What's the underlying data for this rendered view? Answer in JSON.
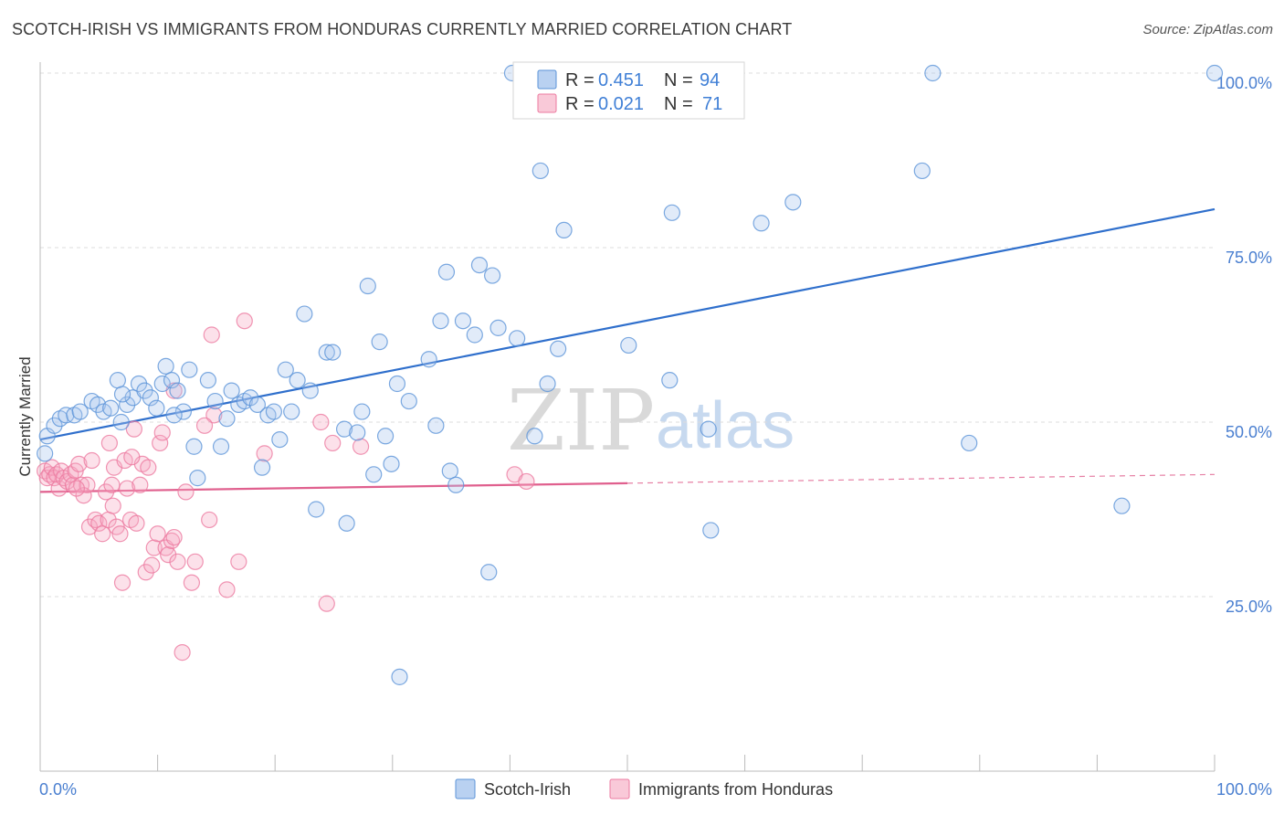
{
  "header": {
    "title": "SCOTCH-IRISH VS IMMIGRANTS FROM HONDURAS CURRENTLY MARRIED CORRELATION CHART",
    "source": "Source: ZipAtlas.com"
  },
  "legend": {
    "blue": {
      "r_label": "R =",
      "r_value": "0.451",
      "n_label": "N =",
      "n_value": "94"
    },
    "pink": {
      "r_label": "R =",
      "r_value": "0.021",
      "n_label": "N =",
      "n_value": "71"
    }
  },
  "watermark": {
    "zip": "ZIP",
    "atlas": "atlas"
  },
  "colors": {
    "blue": "#5b93d8",
    "blue_line": "#2f6fcc",
    "pink": "#ec7aa0",
    "pink_line": "#e0608e",
    "grid": "#dcdcdc"
  },
  "chart_data": {
    "type": "scatter",
    "title": "SCOTCH-IRISH VS IMMIGRANTS FROM HONDURAS CURRENTLY MARRIED CORRELATION CHART",
    "xlabel": "",
    "ylabel": "Currently Married",
    "xlim": [
      0,
      100
    ],
    "ylim": [
      0,
      102
    ],
    "x_tick_labels": [
      "0.0%",
      "100.0%"
    ],
    "y_ticks": [
      25,
      50,
      75,
      100
    ],
    "y_tick_labels": [
      "25.0%",
      "50.0%",
      "75.0%",
      "100.0%"
    ],
    "legend_position": "top-center",
    "series": [
      {
        "name": "Scotch-Irish",
        "color": "#5b93d8",
        "trend": {
          "x": [
            0,
            100
          ],
          "y": [
            47.5,
            80.5
          ],
          "dashed_from": null
        },
        "points": [
          [
            0.4,
            45.5
          ],
          [
            0.6,
            48.0
          ],
          [
            1.2,
            49.5
          ],
          [
            1.7,
            50.5
          ],
          [
            2.2,
            51.0
          ],
          [
            2.9,
            51.0
          ],
          [
            3.4,
            51.5
          ],
          [
            4.4,
            53.0
          ],
          [
            4.9,
            52.5
          ],
          [
            5.4,
            51.5
          ],
          [
            6.0,
            52.0
          ],
          [
            6.6,
            56.0
          ],
          [
            6.9,
            50.0
          ],
          [
            7.4,
            52.5
          ],
          [
            7.9,
            53.5
          ],
          [
            8.4,
            55.5
          ],
          [
            8.9,
            54.5
          ],
          [
            9.4,
            53.5
          ],
          [
            9.9,
            52.0
          ],
          [
            10.4,
            55.5
          ],
          [
            10.7,
            58.0
          ],
          [
            11.2,
            56.0
          ],
          [
            11.7,
            54.5
          ],
          [
            12.2,
            51.5
          ],
          [
            12.7,
            57.5
          ],
          [
            13.1,
            46.5
          ],
          [
            13.4,
            42.0
          ],
          [
            14.3,
            56.0
          ],
          [
            14.9,
            53.0
          ],
          [
            15.4,
            46.5
          ],
          [
            15.9,
            50.5
          ],
          [
            16.3,
            54.5
          ],
          [
            16.9,
            52.5
          ],
          [
            17.4,
            53.0
          ],
          [
            17.9,
            53.5
          ],
          [
            18.5,
            52.5
          ],
          [
            18.9,
            43.5
          ],
          [
            19.4,
            51.0
          ],
          [
            19.9,
            51.5
          ],
          [
            20.4,
            47.5
          ],
          [
            20.9,
            57.5
          ],
          [
            21.4,
            51.5
          ],
          [
            21.9,
            56.0
          ],
          [
            22.5,
            65.5
          ],
          [
            23.0,
            54.5
          ],
          [
            23.5,
            37.5
          ],
          [
            24.4,
            60.0
          ],
          [
            24.9,
            60.0
          ],
          [
            25.9,
            49.0
          ],
          [
            26.1,
            35.5
          ],
          [
            27.0,
            48.5
          ],
          [
            27.4,
            51.5
          ],
          [
            27.9,
            69.5
          ],
          [
            28.4,
            42.5
          ],
          [
            28.9,
            61.5
          ],
          [
            29.4,
            48.0
          ],
          [
            29.9,
            44.0
          ],
          [
            30.4,
            55.5
          ],
          [
            31.4,
            53.0
          ],
          [
            33.1,
            59.0
          ],
          [
            33.7,
            49.5
          ],
          [
            34.1,
            64.5
          ],
          [
            34.6,
            71.5
          ],
          [
            34.9,
            43.0
          ],
          [
            35.4,
            41.0
          ],
          [
            36.0,
            64.5
          ],
          [
            37.0,
            62.5
          ],
          [
            37.4,
            72.5
          ],
          [
            38.2,
            28.5
          ],
          [
            38.5,
            71.0
          ],
          [
            39.0,
            63.5
          ],
          [
            40.2,
            100.0
          ],
          [
            40.6,
            62.0
          ],
          [
            42.1,
            48.0
          ],
          [
            42.6,
            86.0
          ],
          [
            43.2,
            55.5
          ],
          [
            44.1,
            60.5
          ],
          [
            44.6,
            77.5
          ],
          [
            47.1,
            100.0
          ],
          [
            50.1,
            61.0
          ],
          [
            53.6,
            56.0
          ],
          [
            53.8,
            80.0
          ],
          [
            56.9,
            49.0
          ],
          [
            57.1,
            34.5
          ],
          [
            61.4,
            78.5
          ],
          [
            64.1,
            81.5
          ],
          [
            75.1,
            86.0
          ],
          [
            76.0,
            100.0
          ],
          [
            79.1,
            47.0
          ],
          [
            92.1,
            38.0
          ],
          [
            100.0,
            100.0
          ],
          [
            30.6,
            13.5
          ],
          [
            11.4,
            51.0
          ],
          [
            7.0,
            54.0
          ]
        ]
      },
      {
        "name": "Immigrants from Honduras",
        "color": "#ec7aa0",
        "trend": {
          "x": [
            0,
            100
          ],
          "y": [
            40.0,
            42.5
          ],
          "dashed_from": 50
        },
        "points": [
          [
            0.4,
            43.0
          ],
          [
            0.6,
            42.0
          ],
          [
            0.8,
            42.5
          ],
          [
            1.0,
            43.5
          ],
          [
            1.2,
            42.0
          ],
          [
            1.4,
            42.5
          ],
          [
            1.6,
            40.5
          ],
          [
            1.8,
            43.0
          ],
          [
            2.0,
            42.0
          ],
          [
            2.3,
            41.5
          ],
          [
            2.6,
            42.5
          ],
          [
            2.8,
            41.0
          ],
          [
            3.0,
            43.0
          ],
          [
            3.3,
            44.0
          ],
          [
            3.5,
            41.0
          ],
          [
            3.7,
            39.5
          ],
          [
            4.0,
            41.0
          ],
          [
            4.2,
            35.0
          ],
          [
            4.4,
            44.5
          ],
          [
            4.7,
            36.0
          ],
          [
            5.0,
            35.5
          ],
          [
            5.3,
            34.0
          ],
          [
            5.6,
            40.0
          ],
          [
            5.8,
            36.0
          ],
          [
            6.1,
            41.0
          ],
          [
            6.3,
            43.5
          ],
          [
            6.5,
            35.0
          ],
          [
            6.8,
            34.0
          ],
          [
            7.0,
            27.0
          ],
          [
            7.2,
            44.5
          ],
          [
            7.4,
            40.5
          ],
          [
            7.7,
            36.0
          ],
          [
            8.0,
            49.0
          ],
          [
            8.2,
            35.5
          ],
          [
            8.5,
            41.0
          ],
          [
            8.7,
            44.0
          ],
          [
            9.0,
            28.5
          ],
          [
            9.2,
            43.5
          ],
          [
            9.5,
            29.5
          ],
          [
            9.7,
            32.0
          ],
          [
            10.0,
            34.0
          ],
          [
            10.2,
            47.0
          ],
          [
            10.4,
            48.5
          ],
          [
            10.7,
            32.0
          ],
          [
            10.9,
            31.0
          ],
          [
            11.2,
            33.0
          ],
          [
            11.4,
            33.5
          ],
          [
            11.7,
            30.0
          ],
          [
            12.1,
            17.0
          ],
          [
            12.4,
            40.0
          ],
          [
            12.9,
            27.0
          ],
          [
            13.2,
            30.0
          ],
          [
            14.4,
            36.0
          ],
          [
            14.8,
            51.0
          ],
          [
            15.9,
            26.0
          ],
          [
            16.9,
            30.0
          ],
          [
            17.4,
            64.5
          ],
          [
            19.1,
            45.5
          ],
          [
            23.9,
            50.0
          ],
          [
            24.4,
            24.0
          ],
          [
            24.9,
            47.0
          ],
          [
            27.3,
            46.5
          ],
          [
            40.4,
            42.5
          ],
          [
            41.4,
            41.5
          ],
          [
            14.6,
            62.5
          ],
          [
            11.4,
            54.5
          ],
          [
            7.8,
            45.0
          ],
          [
            5.9,
            47.0
          ],
          [
            3.1,
            40.5
          ],
          [
            14.0,
            49.5
          ],
          [
            6.2,
            38.0
          ]
        ]
      }
    ]
  },
  "bottom_legend": {
    "blue_label": "Scotch-Irish",
    "pink_label": "Immigrants from Honduras"
  }
}
